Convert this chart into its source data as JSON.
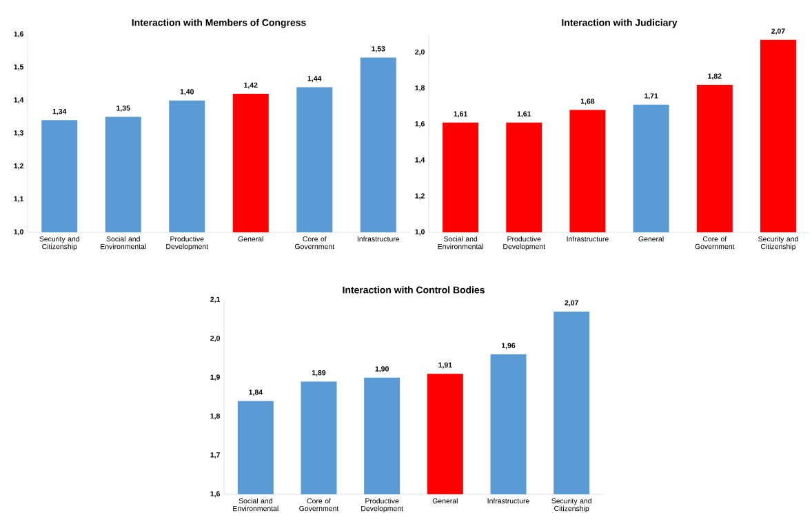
{
  "chart_data": [
    {
      "type": "bar",
      "title": "Interaction with Members of Congress",
      "categories": [
        "Security and Citizenship",
        "Social and Environmental",
        "Productive Development",
        "General",
        "Core of Government",
        "Infrastructure"
      ],
      "values": [
        1.34,
        1.35,
        1.4,
        1.42,
        1.44,
        1.53
      ],
      "value_labels": [
        "1,34",
        "1,35",
        "1,40",
        "1,42",
        "1,44",
        "1,53"
      ],
      "colors": [
        "#5b9bd5",
        "#5b9bd5",
        "#5b9bd5",
        "#ff0000",
        "#5b9bd5",
        "#5b9bd5"
      ],
      "ylim": [
        1.0,
        1.6
      ],
      "yticks": [
        {
          "value": 1.0,
          "label": "1,0"
        },
        {
          "value": 1.1,
          "label": "1,1"
        },
        {
          "value": 1.2,
          "label": "1,2"
        },
        {
          "value": 1.3,
          "label": "1,3"
        },
        {
          "value": 1.4,
          "label": "1,4"
        },
        {
          "value": 1.5,
          "label": "1,5"
        },
        {
          "value": 1.6,
          "label": "1,6"
        }
      ]
    },
    {
      "type": "bar",
      "title": "Interaction with Judiciary",
      "categories": [
        "Social and Environmental",
        "Productive Development",
        "Infrastructure",
        "General",
        "Core of Government",
        "Security and Citizenship"
      ],
      "values": [
        1.61,
        1.61,
        1.68,
        1.71,
        1.82,
        2.07
      ],
      "value_labels": [
        "1,61",
        "1,61",
        "1,68",
        "1,71",
        "1,82",
        "2,07"
      ],
      "colors": [
        "#ff0000",
        "#ff0000",
        "#ff0000",
        "#5b9bd5",
        "#ff0000",
        "#ff0000"
      ],
      "ylim": [
        1.0,
        2.1
      ],
      "yticks": [
        {
          "value": 1.0,
          "label": "1,0"
        },
        {
          "value": 1.2,
          "label": "1,2"
        },
        {
          "value": 1.4,
          "label": "1,4"
        },
        {
          "value": 1.6,
          "label": "1,6"
        },
        {
          "value": 1.8,
          "label": "1,8"
        },
        {
          "value": 2.0,
          "label": "2,0"
        }
      ]
    },
    {
      "type": "bar",
      "title": "Interaction with Control Bodies",
      "categories": [
        "Social and Environmental",
        "Core of Government",
        "Productive Development",
        "General",
        "Infrastructure",
        "Security and Citizenship"
      ],
      "values": [
        1.84,
        1.89,
        1.9,
        1.91,
        1.96,
        2.07
      ],
      "value_labels": [
        "1,84",
        "1,89",
        "1,90",
        "1,91",
        "1,96",
        "2,07"
      ],
      "colors": [
        "#5b9bd5",
        "#5b9bd5",
        "#5b9bd5",
        "#ff0000",
        "#5b9bd5",
        "#5b9bd5"
      ],
      "ylim": [
        1.6,
        2.1
      ],
      "yticks": [
        {
          "value": 1.6,
          "label": "1,6"
        },
        {
          "value": 1.7,
          "label": "1,7"
        },
        {
          "value": 1.8,
          "label": "1,8"
        },
        {
          "value": 1.9,
          "label": "1,9"
        },
        {
          "value": 2.0,
          "label": "2,0"
        },
        {
          "value": 2.1,
          "label": "2,1"
        }
      ]
    }
  ]
}
